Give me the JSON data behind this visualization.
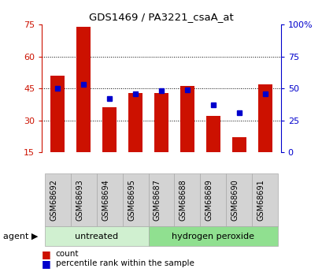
{
  "title": "GDS1469 / PA3221_csaA_at",
  "samples": [
    "GSM68692",
    "GSM68693",
    "GSM68694",
    "GSM68695",
    "GSM68687",
    "GSM68688",
    "GSM68689",
    "GSM68690",
    "GSM68691"
  ],
  "counts": [
    51,
    74,
    36,
    43,
    43,
    46,
    32,
    22,
    47
  ],
  "percentile_ranks": [
    50,
    53,
    42,
    46,
    48,
    49,
    37,
    31,
    46
  ],
  "groups": [
    {
      "label": "untreated",
      "start": 0,
      "end": 4
    },
    {
      "label": "hydrogen peroxide",
      "start": 4,
      "end": 9
    }
  ],
  "group_colors_light": [
    "#d0f0d0",
    "#90e090"
  ],
  "ylim_left": [
    15,
    75
  ],
  "ylim_right": [
    0,
    100
  ],
  "yticks_left": [
    15,
    30,
    45,
    60,
    75
  ],
  "yticks_right": [
    0,
    25,
    50,
    75,
    100
  ],
  "yticklabels_right": [
    "0",
    "25",
    "50",
    "75",
    "100%"
  ],
  "bar_color": "#cc1100",
  "dot_color": "#0000cc",
  "bar_width": 0.55,
  "grid_color": "#000000",
  "background_color": "#ffffff",
  "left_tick_color": "#cc1100",
  "right_tick_color": "#0000cc",
  "agent_label": "agent",
  "agent_arrow": "▶",
  "legend_count_label": "count",
  "legend_pct_label": "percentile rank within the sample"
}
